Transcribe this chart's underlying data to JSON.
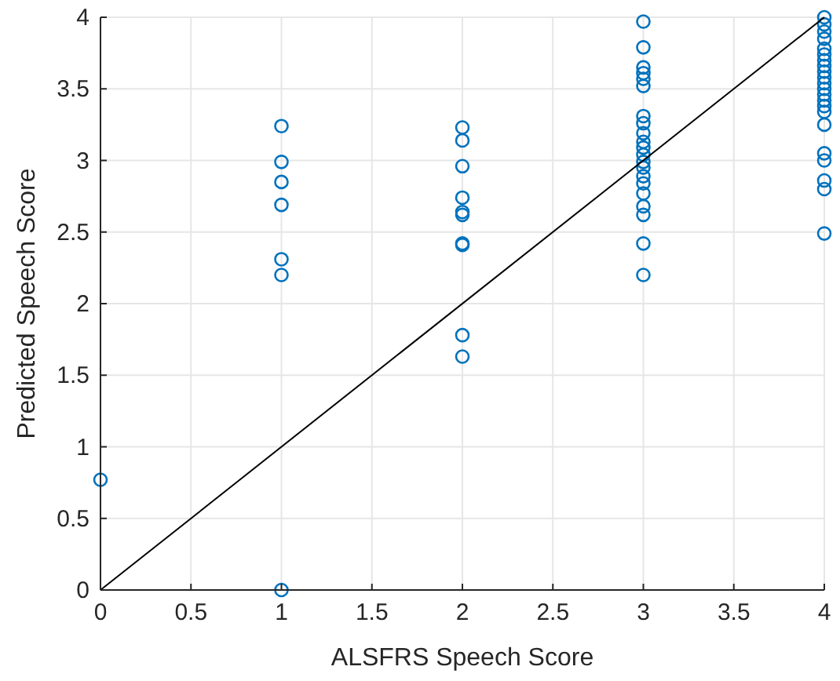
{
  "chart_data": {
    "type": "scatter",
    "xlabel": "ALSFRS Speech Score",
    "ylabel": "Predicted Speech Score",
    "xlim": [
      0,
      4
    ],
    "ylim": [
      0,
      4
    ],
    "xticks": [
      0,
      0.5,
      1,
      1.5,
      2,
      2.5,
      3,
      3.5,
      4
    ],
    "yticks": [
      0,
      0.5,
      1,
      1.5,
      2,
      2.5,
      3,
      3.5,
      4
    ],
    "grid": true,
    "marker": "circle",
    "series": [
      {
        "color": "#0072bd",
        "x": [
          0,
          1,
          1,
          1,
          1,
          1,
          1,
          1,
          2,
          2,
          2,
          2,
          2,
          2,
          2,
          2,
          2,
          2,
          3,
          3,
          3,
          3,
          3,
          3,
          3,
          3,
          3,
          3,
          3,
          3,
          3,
          3,
          3,
          3,
          3,
          3,
          3,
          3,
          3,
          4,
          4,
          4,
          4,
          4,
          4,
          4,
          4,
          4,
          4,
          4,
          4,
          4,
          4,
          4,
          4,
          4,
          4,
          4,
          4,
          4,
          4
        ],
        "values": [
          0.77,
          3.24,
          2.99,
          2.85,
          2.69,
          2.31,
          2.2,
          0,
          3.23,
          3.14,
          2.96,
          2.74,
          2.64,
          2.62,
          2.42,
          2.41,
          1.78,
          1.63,
          3.97,
          3.79,
          3.65,
          3.61,
          3.57,
          3.52,
          3.31,
          3.26,
          3.19,
          3.13,
          3.09,
          3.04,
          2.99,
          2.95,
          2.89,
          2.84,
          2.77,
          2.68,
          2.62,
          2.42,
          2.2,
          4,
          3.95,
          3.9,
          3.85,
          3.78,
          3.74,
          3.7,
          3.66,
          3.62,
          3.58,
          3.54,
          3.5,
          3.46,
          3.42,
          3.38,
          3.34,
          3.25,
          3.05,
          3,
          2.86,
          2.8,
          2.49
        ]
      },
      {
        "type": "line",
        "color": "#000000",
        "marker": "none",
        "x": [
          0,
          4
        ],
        "values": [
          0,
          4
        ]
      }
    ]
  }
}
